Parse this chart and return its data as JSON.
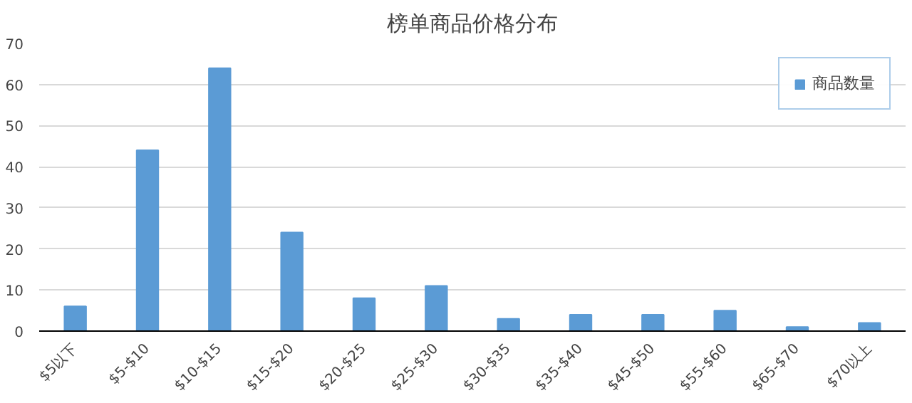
{
  "chart_data": {
    "type": "bar",
    "title": "榜单商品价格分布",
    "categories": [
      "$5以下",
      "$5-$10",
      "$10-$15",
      "$15-$20",
      "$20-$25",
      "$25-$30",
      "$30-$35",
      "$35-$40",
      "$45-$50",
      "$55-$60",
      "$65-$70",
      "$70以上"
    ],
    "series": [
      {
        "name": "商品数量",
        "color": "#5b9bd5",
        "values": [
          6,
          44,
          64,
          24,
          8,
          11,
          3,
          4,
          4,
          5,
          1,
          2
        ]
      }
    ],
    "ylim": [
      0,
      70
    ],
    "yticks": [
      0,
      10,
      20,
      30,
      40,
      50,
      60,
      70
    ],
    "grid": "y",
    "legend": "top right"
  }
}
